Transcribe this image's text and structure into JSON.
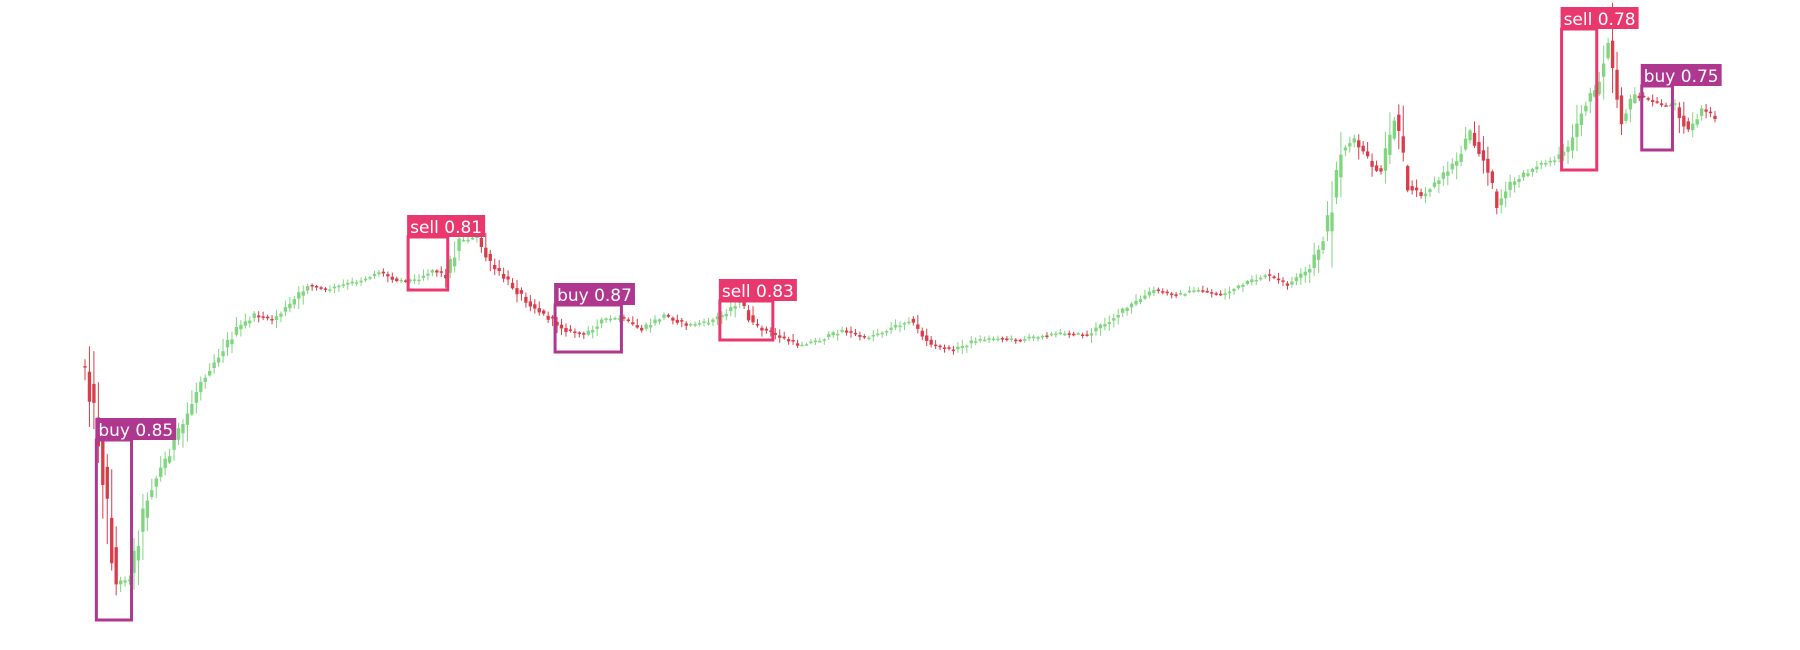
{
  "chart_data": {
    "type": "candlestick",
    "title": "",
    "xlabel": "",
    "ylabel": "",
    "axes_visible": false,
    "grid": false,
    "ylim": [
      0,
      650
    ],
    "colors": {
      "up": "#7fd67f",
      "down": "#d93d4a",
      "buy": "#b0378f",
      "sell": "#e8386d"
    },
    "anchors": [
      [
        0,
        365
      ],
      [
        3,
        435
      ],
      [
        7,
        585
      ],
      [
        10,
        575
      ],
      [
        14,
        495
      ],
      [
        18,
        460
      ],
      [
        22,
        425
      ],
      [
        26,
        380
      ],
      [
        30,
        355
      ],
      [
        34,
        330
      ],
      [
        38,
        315
      ],
      [
        42,
        320
      ],
      [
        46,
        305
      ],
      [
        50,
        285
      ],
      [
        54,
        290
      ],
      [
        58,
        285
      ],
      [
        62,
        280
      ],
      [
        66,
        272
      ],
      [
        70,
        280
      ],
      [
        74,
        280
      ],
      [
        78,
        270
      ],
      [
        81,
        275
      ],
      [
        84,
        240
      ],
      [
        88,
        238
      ],
      [
        91,
        265
      ],
      [
        95,
        282
      ],
      [
        99,
        300
      ],
      [
        103,
        315
      ],
      [
        108,
        330
      ],
      [
        112,
        335
      ],
      [
        116,
        320
      ],
      [
        120,
        318
      ],
      [
        125,
        330
      ],
      [
        130,
        315
      ],
      [
        135,
        325
      ],
      [
        140,
        322
      ],
      [
        143,
        315
      ],
      [
        147,
        300
      ],
      [
        150,
        325
      ],
      [
        155,
        335
      ],
      [
        160,
        345
      ],
      [
        165,
        340
      ],
      [
        170,
        330
      ],
      [
        175,
        338
      ],
      [
        180,
        330
      ],
      [
        185,
        320
      ],
      [
        190,
        345
      ],
      [
        195,
        350
      ],
      [
        200,
        340
      ],
      [
        205,
        338
      ],
      [
        210,
        340
      ],
      [
        215,
        335
      ],
      [
        220,
        333
      ],
      [
        225,
        335
      ],
      [
        230,
        320
      ],
      [
        235,
        305
      ],
      [
        240,
        290
      ],
      [
        245,
        295
      ],
      [
        250,
        290
      ],
      [
        255,
        295
      ],
      [
        260,
        285
      ],
      [
        265,
        275
      ],
      [
        270,
        285
      ],
      [
        275,
        270
      ],
      [
        279,
        225
      ],
      [
        282,
        150
      ],
      [
        285,
        140
      ],
      [
        288,
        160
      ],
      [
        291,
        175
      ],
      [
        294,
        120
      ],
      [
        297,
        185
      ],
      [
        300,
        195
      ],
      [
        304,
        180
      ],
      [
        308,
        160
      ],
      [
        311,
        130
      ],
      [
        314,
        160
      ],
      [
        317,
        205
      ],
      [
        320,
        185
      ],
      [
        323,
        175
      ],
      [
        326,
        165
      ],
      [
        330,
        160
      ],
      [
        333,
        150
      ],
      [
        336,
        110
      ],
      [
        339,
        90
      ],
      [
        342,
        40
      ],
      [
        345,
        120
      ],
      [
        348,
        95
      ],
      [
        351,
        100
      ],
      [
        354,
        105
      ],
      [
        357,
        105
      ],
      [
        360,
        130
      ],
      [
        363,
        110
      ],
      [
        366,
        118
      ]
    ],
    "n": 367,
    "detections": [
      {
        "label": "buy",
        "score": "buy 0.85",
        "x0": 3,
        "x1": 10,
        "y_top": 440,
        "y_bottom": 620
      },
      {
        "label": "sell",
        "score": "sell 0.81",
        "x0": 73,
        "x1": 81,
        "y_top": 237,
        "y_bottom": 290
      },
      {
        "label": "buy",
        "score": "buy 0.87",
        "x0": 106,
        "x1": 120,
        "y_top": 305,
        "y_bottom": 352
      },
      {
        "label": "sell",
        "score": "sell 0.83",
        "x0": 143,
        "x1": 154,
        "y_top": 301,
        "y_bottom": 340
      },
      {
        "label": "sell",
        "score": "sell 0.78",
        "x0": 332,
        "x1": 339,
        "y_top": 29,
        "y_bottom": 170
      },
      {
        "label": "buy",
        "score": "buy 0.75",
        "x0": 350,
        "x1": 356,
        "y_top": 86,
        "y_bottom": 150
      }
    ]
  }
}
